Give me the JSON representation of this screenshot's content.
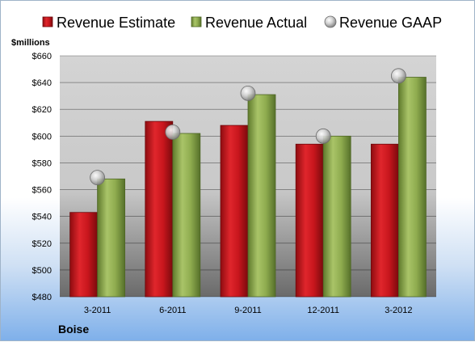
{
  "company": "Boise",
  "chart_data": {
    "type": "bar",
    "unit_label": "$millions",
    "categories": [
      "3-2011",
      "6-2011",
      "9-2011",
      "12-2011",
      "3-2012"
    ],
    "series": [
      {
        "name": "Revenue Estimate",
        "kind": "bar",
        "color": "#c8161d",
        "values": [
          543,
          611,
          608,
          594,
          594
        ]
      },
      {
        "name": "Revenue Actual",
        "kind": "bar",
        "color": "#8fac4f",
        "values": [
          568,
          602,
          631,
          600,
          644
        ]
      },
      {
        "name": "Revenue GAAP",
        "kind": "point",
        "color": "#b8b8b8",
        "values": [
          569,
          603,
          632,
          600,
          645
        ]
      }
    ],
    "ylim": [
      480,
      660
    ],
    "yticks": [
      "$480",
      "$500",
      "$520",
      "$540",
      "$560",
      "$580",
      "$600",
      "$620",
      "$640",
      "$660"
    ],
    "grid": true,
    "legend_position": "top"
  }
}
